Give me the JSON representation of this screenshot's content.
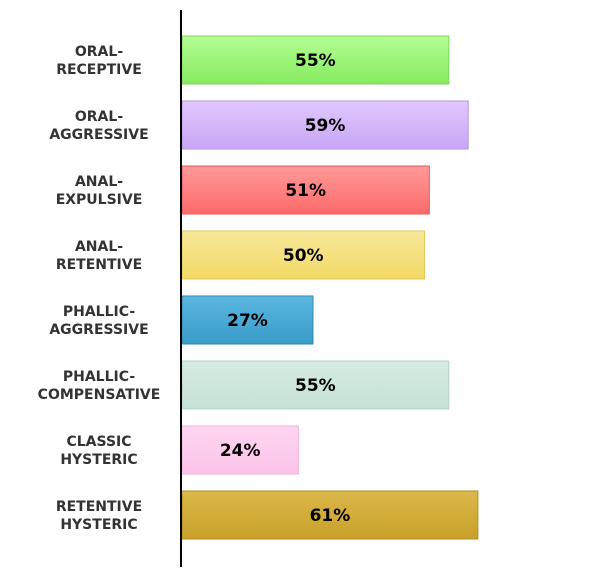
{
  "chart_data": {
    "type": "bar",
    "orientation": "horizontal",
    "categories": [
      [
        "ORAL-",
        "RECEPTIVE"
      ],
      [
        "ORAL-",
        "AGGRESSIVE"
      ],
      [
        "ANAL-",
        "EXPULSIVE"
      ],
      [
        "ANAL-",
        "RETENTIVE"
      ],
      [
        "PHALLIC-",
        "AGGRESSIVE"
      ],
      [
        "PHALLIC-",
        "COMPENSATIVE"
      ],
      [
        "CLASSIC",
        "HYSTERIC"
      ],
      [
        "RETENTIVE",
        "HYSTERIC"
      ]
    ],
    "values": [
      55,
      59,
      51,
      50,
      27,
      55,
      24,
      61
    ],
    "value_labels": [
      "55%",
      "59%",
      "51%",
      "50%",
      "27%",
      "55%",
      "24%",
      "61%"
    ],
    "colors": [
      {
        "top": "#b4ff94",
        "bottom": "#86ea5f",
        "border": "#7fd65a"
      },
      {
        "top": "#e0c8ff",
        "bottom": "#c9a6f5",
        "border": "#b793e6"
      },
      {
        "top": "#ff9a9a",
        "bottom": "#fe6a6a",
        "border": "#e65c5c"
      },
      {
        "top": "#f8e89a",
        "bottom": "#f2d966",
        "border": "#e2c85a"
      },
      {
        "top": "#5bb7e0",
        "bottom": "#3a9bc9",
        "border": "#2f88b3"
      },
      {
        "top": "#d6ebe2",
        "bottom": "#c5e1d5",
        "border": "#b5d3c6"
      },
      {
        "top": "#ffd6f1",
        "bottom": "#fbc3e8",
        "border": "#efb2dc"
      },
      {
        "top": "#dbb84a",
        "bottom": "#c9a02a",
        "border": "#b38c1f"
      }
    ],
    "xlim": [
      0,
      100
    ],
    "grid": false,
    "legend": "none",
    "axis_color": "#000000"
  }
}
